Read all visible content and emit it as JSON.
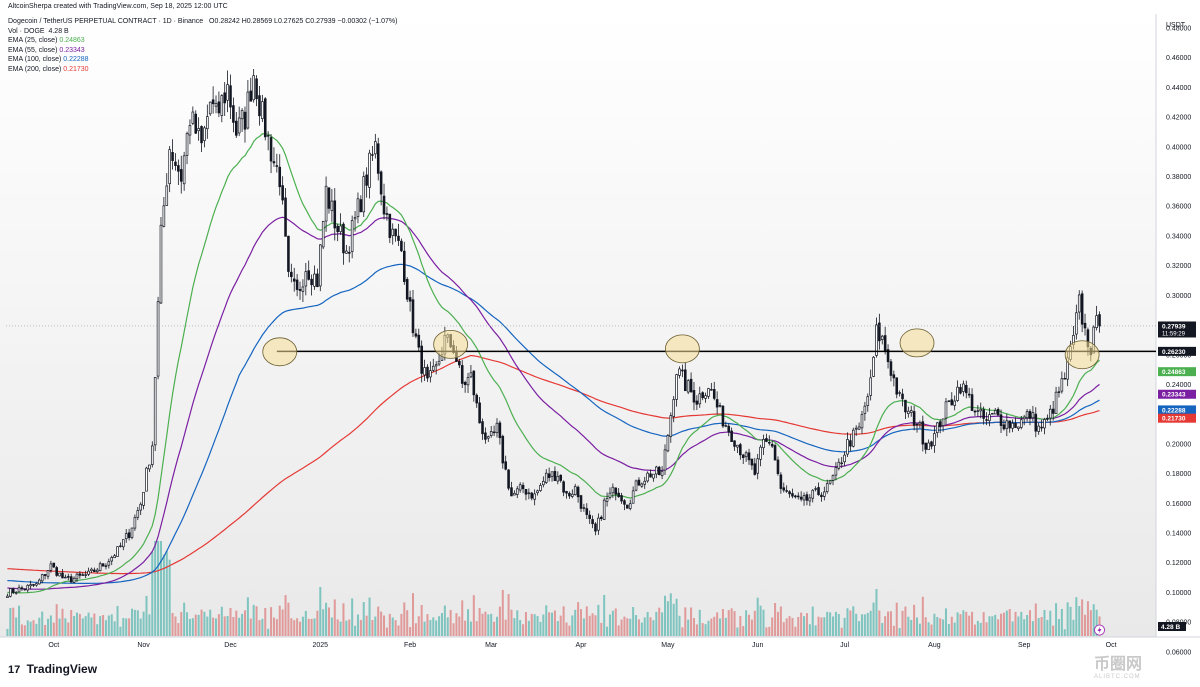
{
  "header": {
    "author_line": "AltcoinSherpa created with TradingView.com, Sep 18, 2025 12:00 UTC",
    "symbol_line": "Dogecoin / TetherUS PERPETUAL CONTRACT · 1D · Binance",
    "ohlc": {
      "o": "O0.28242",
      "h": "H0.28569",
      "l": "L0.27625",
      "c": "C0.27939",
      "chg": "−0.00302 (−1.07%)"
    },
    "volume_label": "Vol · DOGE",
    "volume_value": "4.28 B",
    "indicators": [
      {
        "label": "EMA (25, close)",
        "value": "0.24863",
        "color": "#4caf50"
      },
      {
        "label": "EMA (55, close)",
        "value": "0.23343",
        "color": "#7b1fa2"
      },
      {
        "label": "EMA (100, close)",
        "value": "0.22288",
        "color": "#1565c0"
      },
      {
        "label": "EMA (200, close)",
        "value": "0.21730",
        "color": "#e53935"
      }
    ]
  },
  "brand": "TradingView",
  "watermark": {
    "main": "币圈网",
    "sub": "ALIBTC.COM"
  },
  "chart_data": {
    "type": "candlestick",
    "y_axis": {
      "unit": "USDT",
      "ticks": [
        "0.48000",
        "0.46000",
        "0.44000",
        "0.42000",
        "0.40000",
        "0.38000",
        "0.36000",
        "0.34000",
        "0.32000",
        "0.30000",
        "0.28000",
        "0.26000",
        "0.24000",
        "0.22000",
        "0.20000",
        "0.18000",
        "0.16000",
        "0.14000",
        "0.12000",
        "0.10000",
        "0.08000",
        "0.06000"
      ],
      "range": [
        0.07,
        0.48
      ]
    },
    "x_axis": {
      "labels": [
        "Oct",
        "Nov",
        "Dec",
        "2025",
        "Feb",
        "Mar",
        "Apr",
        "May",
        "Jun",
        "Jul",
        "Aug",
        "Sep",
        "Oct"
      ],
      "label_days": [
        16,
        47,
        77,
        108,
        139,
        167,
        198,
        228,
        259,
        289,
        320,
        351,
        381
      ]
    },
    "price_labels": [
      {
        "value": 0.27939,
        "text": "0.27939",
        "sub": "11:59:29",
        "color": "#131722"
      },
      {
        "value": 0.2623,
        "text": "0.26230",
        "color": "#131722"
      },
      {
        "value": 0.24863,
        "text": "0.24863",
        "color": "#4caf50"
      },
      {
        "value": 0.23343,
        "text": "0.23343",
        "color": "#7b1fa2"
      },
      {
        "value": 0.22288,
        "text": "0.22288",
        "color": "#1565c0"
      },
      {
        "value": 0.2173,
        "text": "0.21730",
        "color": "#e53935"
      }
    ],
    "volume_label": "4.28 B",
    "horizontal_line": {
      "value": 0.2623,
      "from_day": 93,
      "color": "#000000"
    },
    "highlights": [
      {
        "day": 94,
        "value": 0.262
      },
      {
        "day": 153,
        "value": 0.267
      },
      {
        "day": 233,
        "value": 0.264
      },
      {
        "day": 314,
        "value": 0.268
      },
      {
        "day": 371,
        "value": 0.26
      }
    ],
    "anchors": [
      [
        0,
        0.1
      ],
      [
        10,
        0.105
      ],
      [
        15,
        0.118
      ],
      [
        20,
        0.108
      ],
      [
        28,
        0.112
      ],
      [
        34,
        0.12
      ],
      [
        38,
        0.128
      ],
      [
        42,
        0.14
      ],
      [
        46,
        0.16
      ],
      [
        50,
        0.2
      ],
      [
        53,
        0.34
      ],
      [
        56,
        0.4
      ],
      [
        60,
        0.38
      ],
      [
        63,
        0.42
      ],
      [
        67,
        0.4
      ],
      [
        70,
        0.43
      ],
      [
        72,
        0.42
      ],
      [
        76,
        0.44
      ],
      [
        79,
        0.41
      ],
      [
        82,
        0.42
      ],
      [
        85,
        0.45
      ],
      [
        88,
        0.42
      ],
      [
        92,
        0.39
      ],
      [
        94,
        0.38
      ],
      [
        97,
        0.31
      ],
      [
        100,
        0.3
      ],
      [
        103,
        0.32
      ],
      [
        107,
        0.31
      ],
      [
        110,
        0.37
      ],
      [
        113,
        0.35
      ],
      [
        117,
        0.33
      ],
      [
        120,
        0.35
      ],
      [
        124,
        0.38
      ],
      [
        127,
        0.4
      ],
      [
        130,
        0.36
      ],
      [
        133,
        0.34
      ],
      [
        136,
        0.33
      ],
      [
        139,
        0.29
      ],
      [
        142,
        0.26
      ],
      [
        145,
        0.24
      ],
      [
        148,
        0.25
      ],
      [
        151,
        0.27
      ],
      [
        154,
        0.265
      ],
      [
        157,
        0.24
      ],
      [
        160,
        0.245
      ],
      [
        163,
        0.215
      ],
      [
        166,
        0.2
      ],
      [
        169,
        0.21
      ],
      [
        171,
        0.19
      ],
      [
        174,
        0.165
      ],
      [
        178,
        0.17
      ],
      [
        182,
        0.165
      ],
      [
        186,
        0.178
      ],
      [
        190,
        0.18
      ],
      [
        193,
        0.165
      ],
      [
        196,
        0.17
      ],
      [
        200,
        0.15
      ],
      [
        203,
        0.14
      ],
      [
        206,
        0.16
      ],
      [
        210,
        0.17
      ],
      [
        214,
        0.16
      ],
      [
        218,
        0.175
      ],
      [
        222,
        0.18
      ],
      [
        226,
        0.18
      ],
      [
        229,
        0.22
      ],
      [
        231,
        0.25
      ],
      [
        234,
        0.24
      ],
      [
        238,
        0.23
      ],
      [
        242,
        0.24
      ],
      [
        246,
        0.22
      ],
      [
        249,
        0.21
      ],
      [
        252,
        0.2
      ],
      [
        255,
        0.19
      ],
      [
        258,
        0.18
      ],
      [
        261,
        0.2
      ],
      [
        264,
        0.2
      ],
      [
        267,
        0.17
      ],
      [
        270,
        0.165
      ],
      [
        274,
        0.16
      ],
      [
        278,
        0.165
      ],
      [
        283,
        0.17
      ],
      [
        286,
        0.18
      ],
      [
        290,
        0.2
      ],
      [
        294,
        0.21
      ],
      [
        298,
        0.24
      ],
      [
        300,
        0.275
      ],
      [
        302,
        0.27
      ],
      [
        305,
        0.25
      ],
      [
        308,
        0.23
      ],
      [
        311,
        0.22
      ],
      [
        314,
        0.215
      ],
      [
        317,
        0.2
      ],
      [
        320,
        0.205
      ],
      [
        323,
        0.22
      ],
      [
        326,
        0.23
      ],
      [
        329,
        0.24
      ],
      [
        332,
        0.23
      ],
      [
        335,
        0.22
      ],
      [
        338,
        0.215
      ],
      [
        341,
        0.22
      ],
      [
        344,
        0.215
      ],
      [
        347,
        0.213
      ],
      [
        350,
        0.215
      ],
      [
        353,
        0.22
      ],
      [
        356,
        0.21
      ],
      [
        359,
        0.215
      ],
      [
        362,
        0.23
      ],
      [
        365,
        0.245
      ],
      [
        368,
        0.27
      ],
      [
        370,
        0.295
      ],
      [
        372,
        0.275
      ],
      [
        374,
        0.265
      ],
      [
        376,
        0.28
      ],
      [
        377,
        0.279
      ]
    ],
    "last_close": 0.27939
  }
}
